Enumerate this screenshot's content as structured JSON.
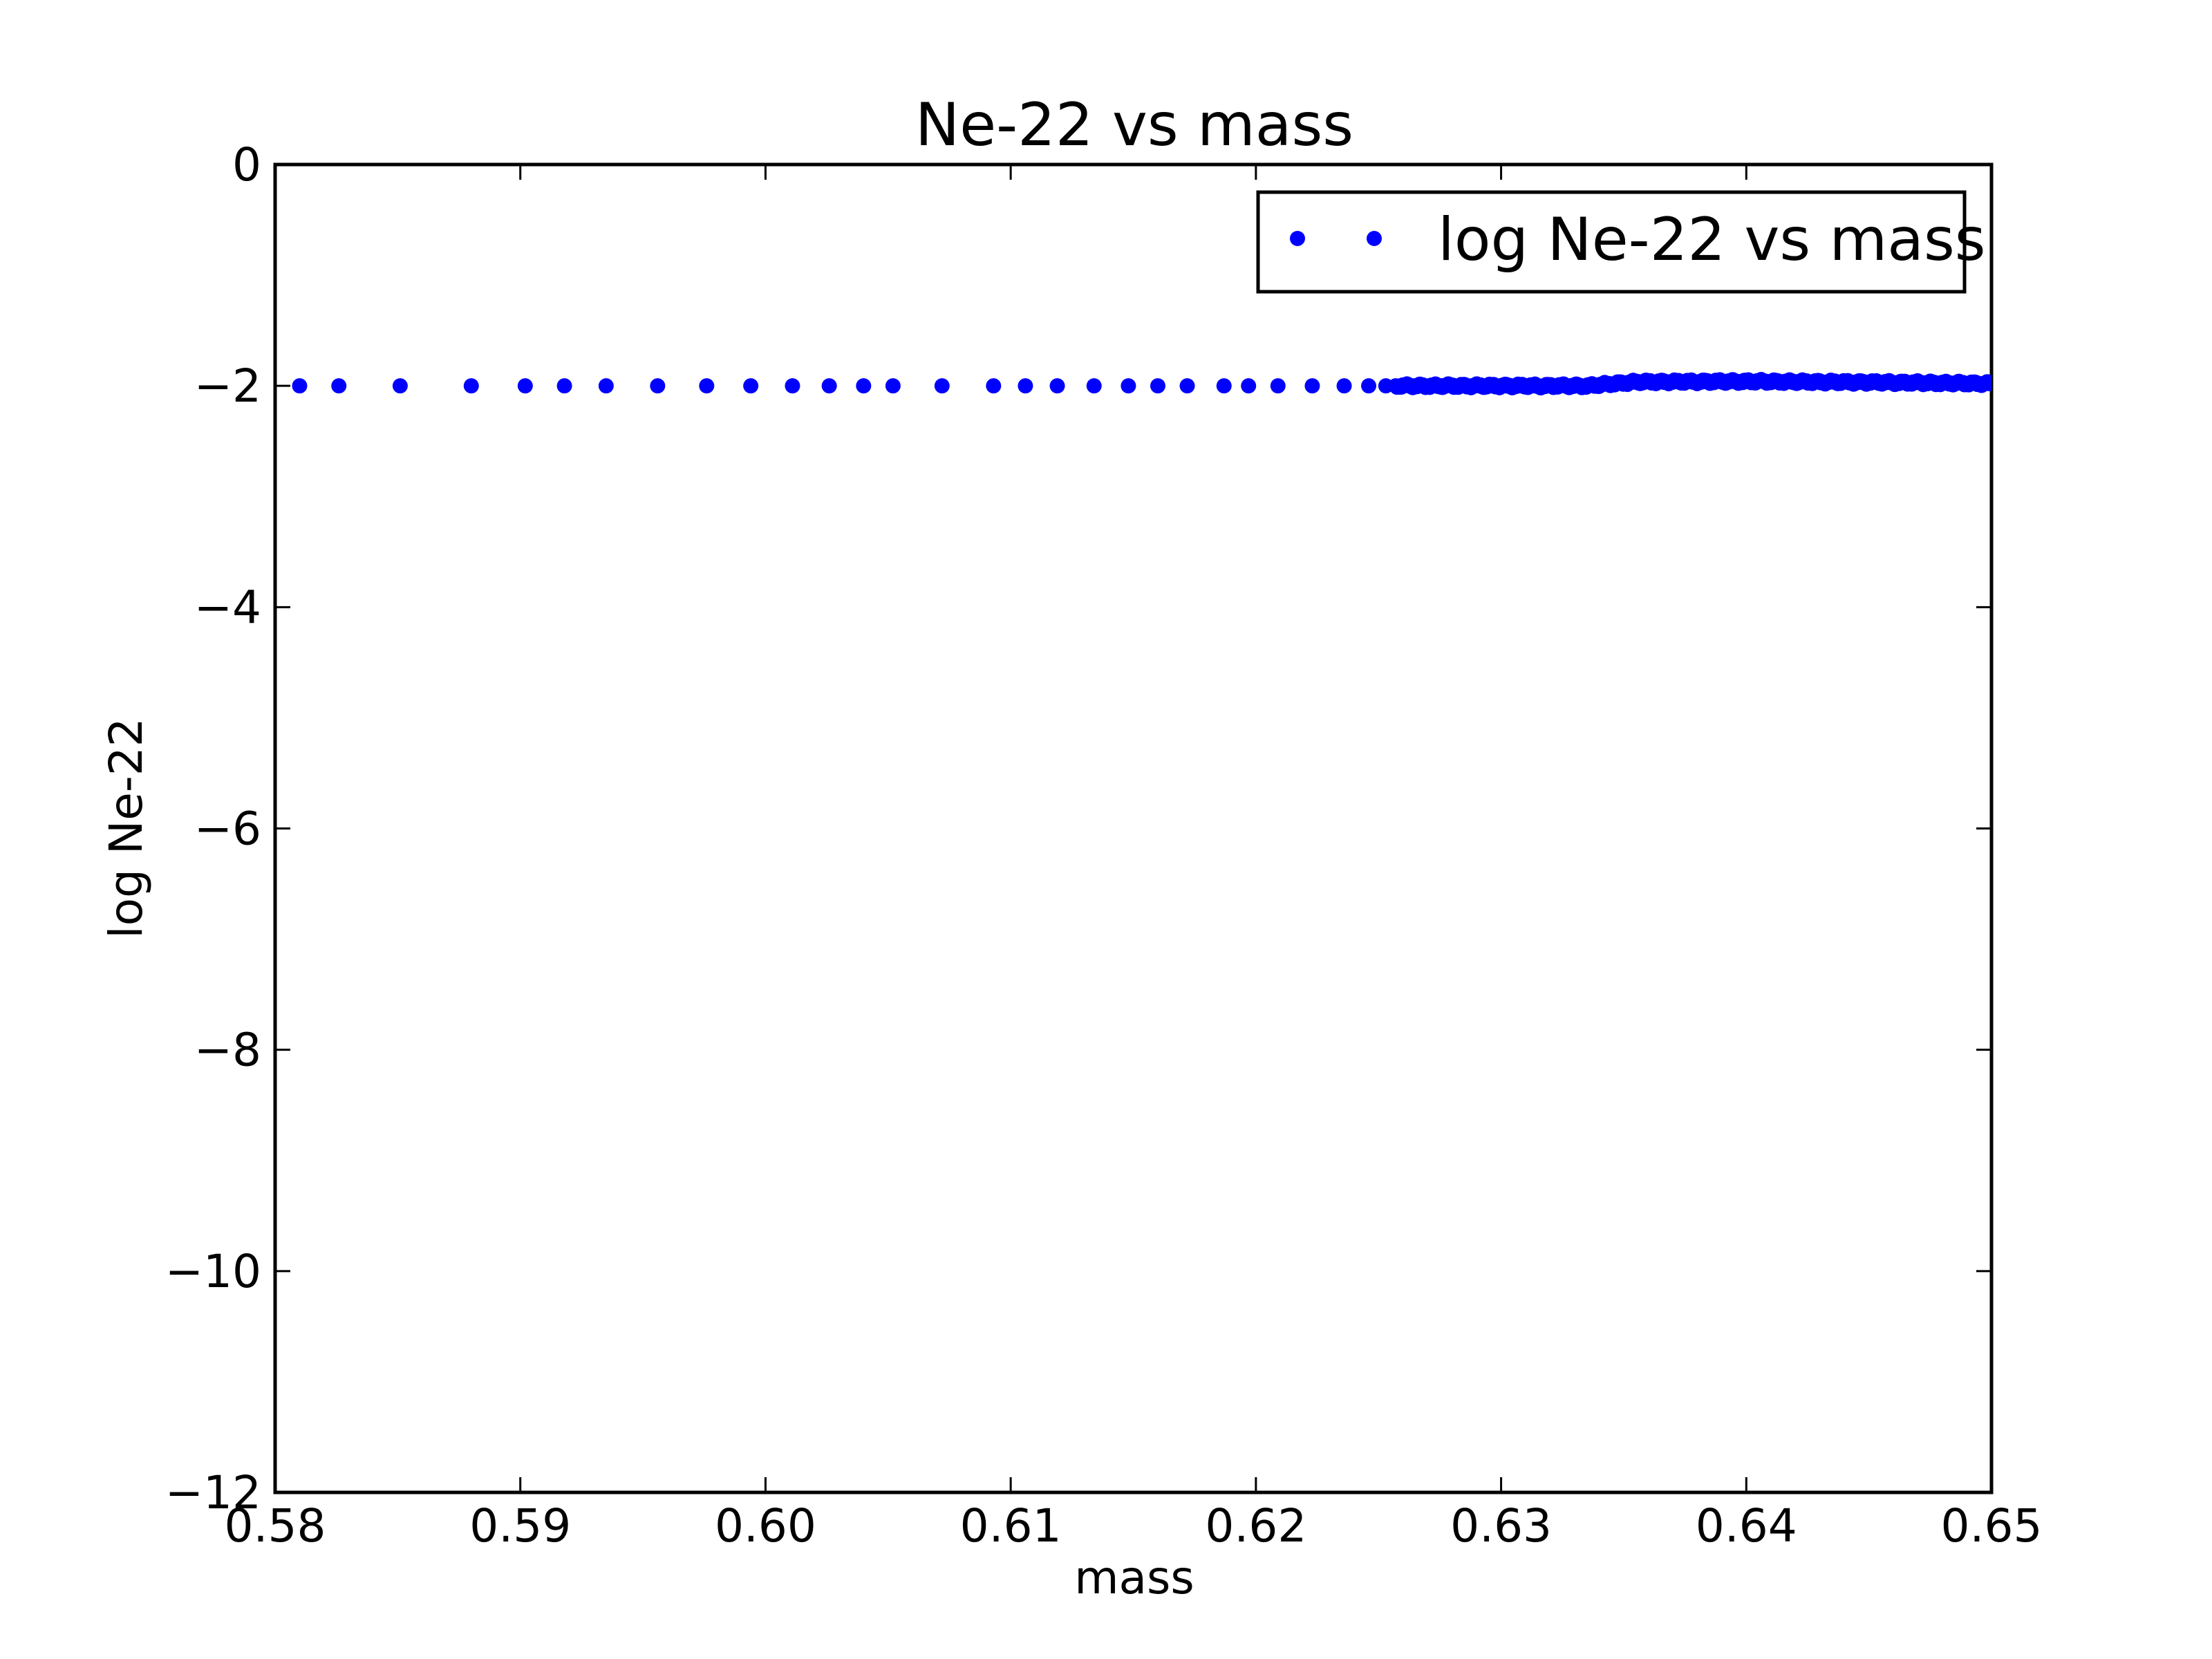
{
  "figure": {
    "background_color": "#ffffff",
    "accent_color": "#0000ff"
  },
  "chart_data": {
    "type": "scatter",
    "title": "Ne-22 vs mass",
    "xlabel": "mass",
    "ylabel": "log Ne-22",
    "xlim": [
      0.58,
      0.65
    ],
    "ylim": [
      -12,
      0
    ],
    "grid": false,
    "legend_label": "log Ne-22 vs mass",
    "legend_position": "upper right",
    "x_ticks": {
      "values": [
        0.58,
        0.59,
        0.6,
        0.61,
        0.62,
        0.63,
        0.64,
        0.65
      ],
      "labels": [
        "0.58",
        "0.59",
        "0.60",
        "0.61",
        "0.62",
        "0.63",
        "0.64",
        "0.65"
      ]
    },
    "y_ticks": {
      "values": [
        0,
        -2,
        -4,
        -6,
        -8,
        -10,
        -12
      ],
      "labels": [
        "0",
        "−2",
        "−4",
        "−6",
        "−8",
        "−10",
        "−12"
      ]
    },
    "series": [
      {
        "name": "log Ne-22 vs mass",
        "color": "#0000ff",
        "marker": "circle",
        "marker_radius_px": 11,
        "points": [
          [
            0.581,
            -2.0
          ],
          [
            0.5826,
            -2.0
          ],
          [
            0.5851,
            -2.0
          ],
          [
            0.588,
            -2.0
          ],
          [
            0.5902,
            -2.0
          ],
          [
            0.5918,
            -2.0
          ],
          [
            0.5935,
            -2.0
          ],
          [
            0.5956,
            -2.0
          ],
          [
            0.5976,
            -2.0
          ],
          [
            0.5994,
            -2.0
          ],
          [
            0.6011,
            -2.0
          ],
          [
            0.6026,
            -2.0
          ],
          [
            0.604,
            -2.0
          ],
          [
            0.6052,
            -2.0
          ],
          [
            0.6072,
            -2.0
          ],
          [
            0.6093,
            -2.0
          ],
          [
            0.6106,
            -2.0
          ],
          [
            0.6119,
            -2.0
          ],
          [
            0.6134,
            -2.0
          ],
          [
            0.6148,
            -2.0
          ],
          [
            0.616,
            -2.0
          ],
          [
            0.6172,
            -2.0
          ],
          [
            0.6187,
            -2.0
          ],
          [
            0.6197,
            -2.0
          ],
          [
            0.6209,
            -2.0
          ],
          [
            0.6223,
            -2.0
          ],
          [
            0.6236,
            -2.0
          ],
          [
            0.6246,
            -2.0
          ],
          [
            0.6253,
            -2.0
          ]
        ],
        "dense_band": {
          "x_start": 0.6257,
          "x_end": 0.65,
          "n_points": 420,
          "y_profile": [
            [
              0.6257,
              -2.0
            ],
            [
              0.6335,
              -2.0
            ],
            [
              0.6355,
              -1.965
            ],
            [
              0.64,
              -1.96
            ],
            [
              0.646,
              -1.97
            ],
            [
              0.65,
              -1.98
            ]
          ]
        }
      }
    ]
  }
}
